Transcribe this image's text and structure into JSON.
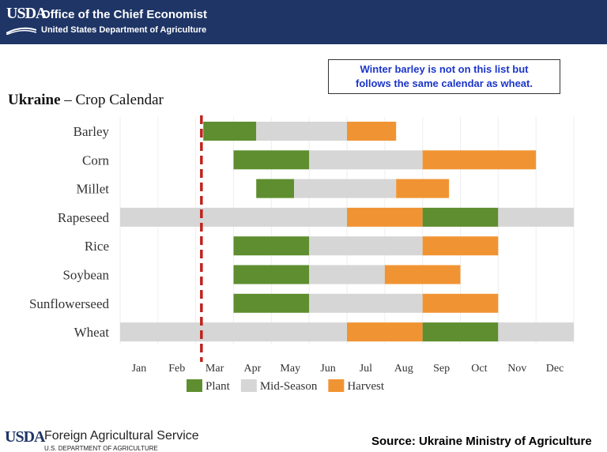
{
  "header": {
    "logo": "USDA",
    "office": "Office of the Chief Economist",
    "department": "United States Department of Agriculture",
    "bg_color": "#1f3566"
  },
  "note": {
    "line1": "Winter barley is not on this list but",
    "line2": "follows the same calendar as wheat."
  },
  "chart_title": {
    "country": "Ukraine",
    "dash": "–",
    "subtitle": "Crop Calendar"
  },
  "chart_data": {
    "type": "bar",
    "orientation": "horizontal-gantt",
    "months": [
      "Jan",
      "Feb",
      "Mar",
      "Apr",
      "May",
      "Jun",
      "Jul",
      "Aug",
      "Sep",
      "Oct",
      "Nov",
      "Dec"
    ],
    "x_unit": "month (0 = start of Jan, 12 = end of Dec)",
    "xlim": [
      0,
      12
    ],
    "marker_line": {
      "x": 2.15,
      "style": "dashed",
      "color": "#c0221c"
    },
    "legend": [
      {
        "key": "plant",
        "label": "Plant",
        "color": "#5e8e2f"
      },
      {
        "key": "mid",
        "label": "Mid-Season",
        "color": "#d6d6d6"
      },
      {
        "key": "harvest",
        "label": "Harvest",
        "color": "#f09433"
      }
    ],
    "crops": [
      {
        "name": "Barley",
        "segments": [
          {
            "phase": "plant",
            "start": 2.2,
            "end": 3.6
          },
          {
            "phase": "mid",
            "start": 3.6,
            "end": 6.0
          },
          {
            "phase": "harvest",
            "start": 6.0,
            "end": 7.3
          }
        ]
      },
      {
        "name": "Corn",
        "segments": [
          {
            "phase": "plant",
            "start": 3.0,
            "end": 5.0
          },
          {
            "phase": "mid",
            "start": 5.0,
            "end": 8.0
          },
          {
            "phase": "harvest",
            "start": 8.0,
            "end": 11.0
          }
        ]
      },
      {
        "name": "Millet",
        "segments": [
          {
            "phase": "plant",
            "start": 3.6,
            "end": 4.6
          },
          {
            "phase": "mid",
            "start": 4.6,
            "end": 7.3
          },
          {
            "phase": "harvest",
            "start": 7.3,
            "end": 8.7
          }
        ]
      },
      {
        "name": "Rapeseed",
        "segments": [
          {
            "phase": "mid",
            "start": 0.0,
            "end": 6.0
          },
          {
            "phase": "harvest",
            "start": 6.0,
            "end": 8.0
          },
          {
            "phase": "plant",
            "start": 8.0,
            "end": 10.0
          },
          {
            "phase": "mid",
            "start": 10.0,
            "end": 12.0
          }
        ]
      },
      {
        "name": "Rice",
        "segments": [
          {
            "phase": "plant",
            "start": 3.0,
            "end": 5.0
          },
          {
            "phase": "mid",
            "start": 5.0,
            "end": 8.0
          },
          {
            "phase": "harvest",
            "start": 8.0,
            "end": 10.0
          }
        ]
      },
      {
        "name": "Soybean",
        "segments": [
          {
            "phase": "plant",
            "start": 3.0,
            "end": 5.0
          },
          {
            "phase": "mid",
            "start": 5.0,
            "end": 7.0
          },
          {
            "phase": "harvest",
            "start": 7.0,
            "end": 9.0
          }
        ]
      },
      {
        "name": "Sunflowerseed",
        "segments": [
          {
            "phase": "plant",
            "start": 3.0,
            "end": 5.0
          },
          {
            "phase": "mid",
            "start": 5.0,
            "end": 8.0
          },
          {
            "phase": "harvest",
            "start": 8.0,
            "end": 10.0
          }
        ]
      },
      {
        "name": "Wheat",
        "segments": [
          {
            "phase": "mid",
            "start": 0.0,
            "end": 6.0
          },
          {
            "phase": "harvest",
            "start": 6.0,
            "end": 8.0
          },
          {
            "phase": "plant",
            "start": 8.0,
            "end": 10.0
          },
          {
            "phase": "mid",
            "start": 10.0,
            "end": 12.0
          }
        ]
      }
    ]
  },
  "footer": {
    "logo": "USDA",
    "agency": "Foreign Agricultural Service",
    "department": "U.S. DEPARTMENT OF AGRICULTURE",
    "source": "Source: Ukraine Ministry of Agriculture"
  }
}
